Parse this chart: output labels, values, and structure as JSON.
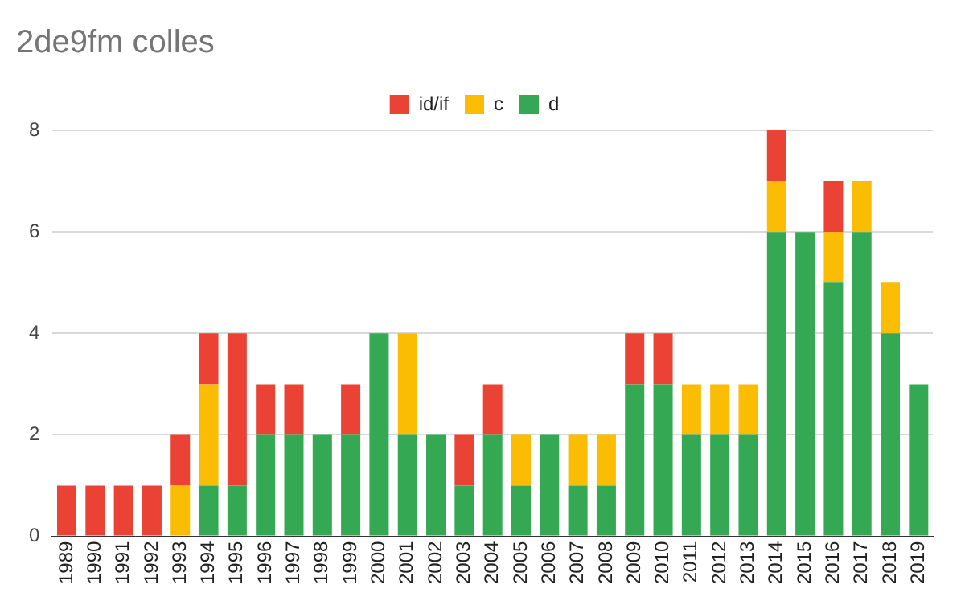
{
  "chart_data": {
    "type": "bar",
    "title": "2de9fm colles",
    "stacked": true,
    "categories": [
      "1989",
      "1990",
      "1991",
      "1992",
      "1993",
      "1994",
      "1995",
      "1996",
      "1997",
      "1998",
      "1999",
      "2000",
      "2001",
      "2002",
      "2003",
      "2004",
      "2005",
      "2006",
      "2007",
      "2008",
      "2009",
      "2010",
      "2011",
      "2012",
      "2013",
      "2014",
      "2015",
      "2016",
      "2017",
      "2018",
      "2019"
    ],
    "series": [
      {
        "name": "d",
        "color": "#34a853",
        "values": [
          0,
          0,
          0,
          0,
          0,
          1,
          1,
          2,
          2,
          2,
          2,
          4,
          2,
          2,
          1,
          2,
          1,
          2,
          1,
          1,
          3,
          3,
          2,
          2,
          2,
          6,
          6,
          5,
          6,
          4,
          3
        ]
      },
      {
        "name": "c",
        "color": "#fbbc04",
        "values": [
          0,
          0,
          0,
          0,
          1,
          2,
          0,
          0,
          0,
          0,
          0,
          0,
          2,
          0,
          0,
          0,
          1,
          0,
          1,
          1,
          0,
          0,
          1,
          1,
          1,
          1,
          0,
          1,
          1,
          1,
          0
        ]
      },
      {
        "name": "id/if",
        "color": "#ea4335",
        "values": [
          1,
          1,
          1,
          1,
          1,
          1,
          3,
          1,
          1,
          0,
          1,
          0,
          0,
          0,
          1,
          1,
          0,
          0,
          0,
          0,
          1,
          1,
          0,
          0,
          0,
          1,
          0,
          1,
          0,
          0,
          0
        ]
      }
    ],
    "ylim": [
      0,
      8
    ],
    "yticks": [
      0,
      2,
      4,
      6,
      8
    ],
    "grid": "y",
    "legend": "top"
  }
}
